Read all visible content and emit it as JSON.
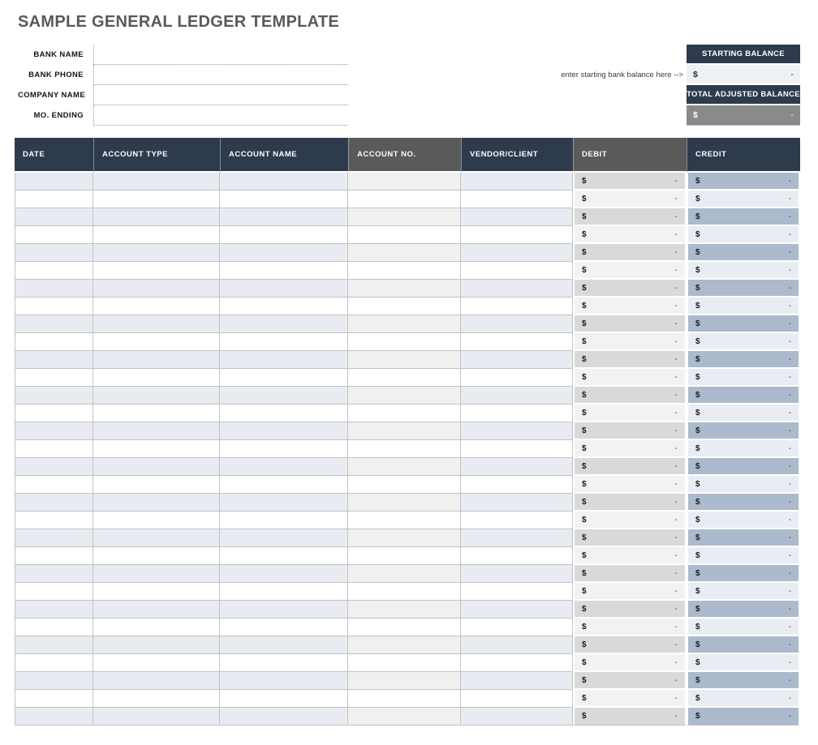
{
  "page": {
    "title": "SAMPLE GENERAL LEDGER TEMPLATE"
  },
  "form": {
    "fields": [
      {
        "label": "BANK NAME",
        "value": ""
      },
      {
        "label": "BANK PHONE",
        "value": ""
      },
      {
        "label": "COMPANY NAME",
        "value": ""
      },
      {
        "label": "MO. ENDING",
        "value": ""
      }
    ]
  },
  "balances": {
    "note": "enter starting bank balance here -->",
    "starting": {
      "header": "STARTING BALANCE",
      "symbol": "$",
      "value": "-"
    },
    "total_adjusted": {
      "header": "TOTAL ADJUSTED BALANCE",
      "symbol": "$",
      "value": "-"
    }
  },
  "colors": {
    "header_navy": "#2d3b4d",
    "header_gray": "#5a5a5a",
    "row_shade_blue": "#e8ebf1",
    "row_shade_gray": "#f0f0ef",
    "debit_shade": "#d9d9d9",
    "debit_light": "#f2f2f2",
    "credit_shade": "#abbacc",
    "credit_light": "#e9edf3",
    "starting_value_bg": "#edf1f6",
    "total_value_bg": "#8a8a8a",
    "title_text": "#595959"
  },
  "table": {
    "columns": [
      {
        "label": "DATE",
        "theme": "navy",
        "type": "text"
      },
      {
        "label": "ACCOUNT TYPE",
        "theme": "navy",
        "type": "text"
      },
      {
        "label": "ACCOUNT NAME",
        "theme": "navy",
        "type": "text"
      },
      {
        "label": "ACCOUNT NO.",
        "theme": "gray",
        "type": "text"
      },
      {
        "label": "VENDOR/CLIENT",
        "theme": "navy",
        "type": "text"
      },
      {
        "label": "DEBIT",
        "theme": "gray",
        "type": "money"
      },
      {
        "label": "CREDIT",
        "theme": "navy",
        "type": "money"
      }
    ],
    "rows": [
      {
        "date": "",
        "account_type": "",
        "account_name": "",
        "account_no": "",
        "vendor_client": "",
        "debit": {
          "symbol": "$",
          "value": "-"
        },
        "credit": {
          "symbol": "$",
          "value": "-"
        }
      },
      {
        "date": "",
        "account_type": "",
        "account_name": "",
        "account_no": "",
        "vendor_client": "",
        "debit": {
          "symbol": "$",
          "value": "-"
        },
        "credit": {
          "symbol": "$",
          "value": "-"
        }
      },
      {
        "date": "",
        "account_type": "",
        "account_name": "",
        "account_no": "",
        "vendor_client": "",
        "debit": {
          "symbol": "$",
          "value": "-"
        },
        "credit": {
          "symbol": "$",
          "value": "-"
        }
      },
      {
        "date": "",
        "account_type": "",
        "account_name": "",
        "account_no": "",
        "vendor_client": "",
        "debit": {
          "symbol": "$",
          "value": "-"
        },
        "credit": {
          "symbol": "$",
          "value": "-"
        }
      },
      {
        "date": "",
        "account_type": "",
        "account_name": "",
        "account_no": "",
        "vendor_client": "",
        "debit": {
          "symbol": "$",
          "value": "-"
        },
        "credit": {
          "symbol": "$",
          "value": "-"
        }
      },
      {
        "date": "",
        "account_type": "",
        "account_name": "",
        "account_no": "",
        "vendor_client": "",
        "debit": {
          "symbol": "$",
          "value": "-"
        },
        "credit": {
          "symbol": "$",
          "value": "-"
        }
      },
      {
        "date": "",
        "account_type": "",
        "account_name": "",
        "account_no": "",
        "vendor_client": "",
        "debit": {
          "symbol": "$",
          "value": "-"
        },
        "credit": {
          "symbol": "$",
          "value": "-"
        }
      },
      {
        "date": "",
        "account_type": "",
        "account_name": "",
        "account_no": "",
        "vendor_client": "",
        "debit": {
          "symbol": "$",
          "value": "-"
        },
        "credit": {
          "symbol": "$",
          "value": "-"
        }
      },
      {
        "date": "",
        "account_type": "",
        "account_name": "",
        "account_no": "",
        "vendor_client": "",
        "debit": {
          "symbol": "$",
          "value": "-"
        },
        "credit": {
          "symbol": "$",
          "value": "-"
        }
      },
      {
        "date": "",
        "account_type": "",
        "account_name": "",
        "account_no": "",
        "vendor_client": "",
        "debit": {
          "symbol": "$",
          "value": "-"
        },
        "credit": {
          "symbol": "$",
          "value": "-"
        }
      },
      {
        "date": "",
        "account_type": "",
        "account_name": "",
        "account_no": "",
        "vendor_client": "",
        "debit": {
          "symbol": "$",
          "value": "-"
        },
        "credit": {
          "symbol": "$",
          "value": "-"
        }
      },
      {
        "date": "",
        "account_type": "",
        "account_name": "",
        "account_no": "",
        "vendor_client": "",
        "debit": {
          "symbol": "$",
          "value": "-"
        },
        "credit": {
          "symbol": "$",
          "value": "-"
        }
      },
      {
        "date": "",
        "account_type": "",
        "account_name": "",
        "account_no": "",
        "vendor_client": "",
        "debit": {
          "symbol": "$",
          "value": "-"
        },
        "credit": {
          "symbol": "$",
          "value": "-"
        }
      },
      {
        "date": "",
        "account_type": "",
        "account_name": "",
        "account_no": "",
        "vendor_client": "",
        "debit": {
          "symbol": "$",
          "value": "-"
        },
        "credit": {
          "symbol": "$",
          "value": "-"
        }
      },
      {
        "date": "",
        "account_type": "",
        "account_name": "",
        "account_no": "",
        "vendor_client": "",
        "debit": {
          "symbol": "$",
          "value": "-"
        },
        "credit": {
          "symbol": "$",
          "value": "-"
        }
      },
      {
        "date": "",
        "account_type": "",
        "account_name": "",
        "account_no": "",
        "vendor_client": "",
        "debit": {
          "symbol": "$",
          "value": "-"
        },
        "credit": {
          "symbol": "$",
          "value": "-"
        }
      },
      {
        "date": "",
        "account_type": "",
        "account_name": "",
        "account_no": "",
        "vendor_client": "",
        "debit": {
          "symbol": "$",
          "value": "-"
        },
        "credit": {
          "symbol": "$",
          "value": "-"
        }
      },
      {
        "date": "",
        "account_type": "",
        "account_name": "",
        "account_no": "",
        "vendor_client": "",
        "debit": {
          "symbol": "$",
          "value": "-"
        },
        "credit": {
          "symbol": "$",
          "value": "-"
        }
      },
      {
        "date": "",
        "account_type": "",
        "account_name": "",
        "account_no": "",
        "vendor_client": "",
        "debit": {
          "symbol": "$",
          "value": "-"
        },
        "credit": {
          "symbol": "$",
          "value": "-"
        }
      },
      {
        "date": "",
        "account_type": "",
        "account_name": "",
        "account_no": "",
        "vendor_client": "",
        "debit": {
          "symbol": "$",
          "value": "-"
        },
        "credit": {
          "symbol": "$",
          "value": "-"
        }
      },
      {
        "date": "",
        "account_type": "",
        "account_name": "",
        "account_no": "",
        "vendor_client": "",
        "debit": {
          "symbol": "$",
          "value": "-"
        },
        "credit": {
          "symbol": "$",
          "value": "-"
        }
      },
      {
        "date": "",
        "account_type": "",
        "account_name": "",
        "account_no": "",
        "vendor_client": "",
        "debit": {
          "symbol": "$",
          "value": "-"
        },
        "credit": {
          "symbol": "$",
          "value": "-"
        }
      },
      {
        "date": "",
        "account_type": "",
        "account_name": "",
        "account_no": "",
        "vendor_client": "",
        "debit": {
          "symbol": "$",
          "value": "-"
        },
        "credit": {
          "symbol": "$",
          "value": "-"
        }
      },
      {
        "date": "",
        "account_type": "",
        "account_name": "",
        "account_no": "",
        "vendor_client": "",
        "debit": {
          "symbol": "$",
          "value": "-"
        },
        "credit": {
          "symbol": "$",
          "value": "-"
        }
      },
      {
        "date": "",
        "account_type": "",
        "account_name": "",
        "account_no": "",
        "vendor_client": "",
        "debit": {
          "symbol": "$",
          "value": "-"
        },
        "credit": {
          "symbol": "$",
          "value": "-"
        }
      },
      {
        "date": "",
        "account_type": "",
        "account_name": "",
        "account_no": "",
        "vendor_client": "",
        "debit": {
          "symbol": "$",
          "value": "-"
        },
        "credit": {
          "symbol": "$",
          "value": "-"
        }
      },
      {
        "date": "",
        "account_type": "",
        "account_name": "",
        "account_no": "",
        "vendor_client": "",
        "debit": {
          "symbol": "$",
          "value": "-"
        },
        "credit": {
          "symbol": "$",
          "value": "-"
        }
      },
      {
        "date": "",
        "account_type": "",
        "account_name": "",
        "account_no": "",
        "vendor_client": "",
        "debit": {
          "symbol": "$",
          "value": "-"
        },
        "credit": {
          "symbol": "$",
          "value": "-"
        }
      },
      {
        "date": "",
        "account_type": "",
        "account_name": "",
        "account_no": "",
        "vendor_client": "",
        "debit": {
          "symbol": "$",
          "value": "-"
        },
        "credit": {
          "symbol": "$",
          "value": "-"
        }
      },
      {
        "date": "",
        "account_type": "",
        "account_name": "",
        "account_no": "",
        "vendor_client": "",
        "debit": {
          "symbol": "$",
          "value": "-"
        },
        "credit": {
          "symbol": "$",
          "value": "-"
        }
      },
      {
        "date": "",
        "account_type": "",
        "account_name": "",
        "account_no": "",
        "vendor_client": "",
        "debit": {
          "symbol": "$",
          "value": "-"
        },
        "credit": {
          "symbol": "$",
          "value": "-"
        }
      }
    ]
  }
}
